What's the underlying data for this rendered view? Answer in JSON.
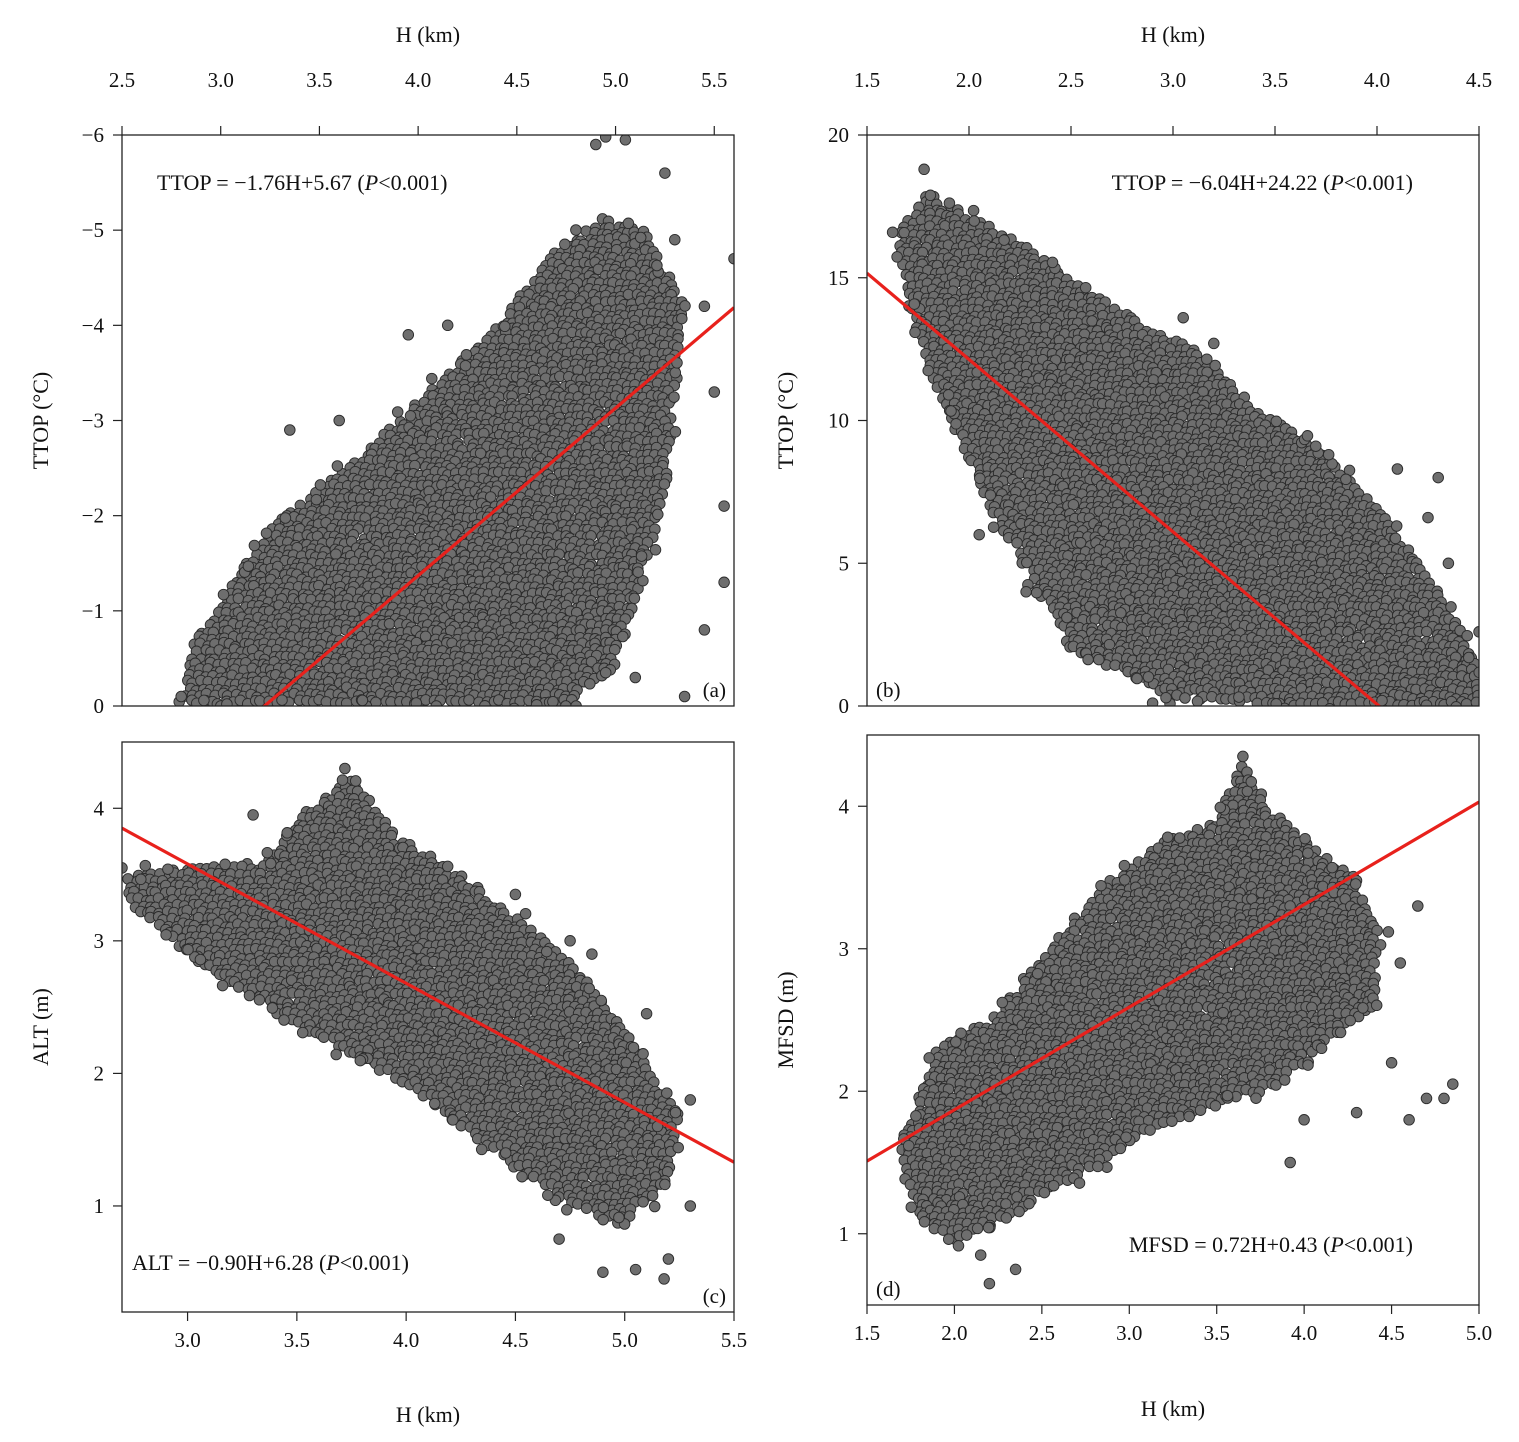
{
  "colors": {
    "point_fill": "#6e6e6e",
    "point_stroke": "#2b2b2b",
    "regression_line": "#e8211c",
    "axis": "#222222"
  },
  "chart_data": [
    {
      "id": "a",
      "type": "scatter",
      "panel_label": "(a)",
      "xlabel": "H (km)",
      "ylabel": "TTOP (°C)",
      "x_axis_position": "top",
      "xlim": [
        2.5,
        5.6
      ],
      "ylim": [
        0,
        -6
      ],
      "y_inverted": true,
      "xticks": [
        2.5,
        3.0,
        3.5,
        4.0,
        4.5,
        5.0,
        5.5
      ],
      "xtick_labels": [
        "2.5",
        "3.0",
        "3.5",
        "4.0",
        "4.5",
        "5.0",
        "5.5"
      ],
      "yticks": [
        0,
        -1,
        -2,
        -3,
        -4,
        -5,
        -6
      ],
      "ytick_labels": [
        "0",
        "−1",
        "−2",
        "−3",
        "−4",
        "−5",
        "−6"
      ],
      "equation": {
        "lhs": "TTOP = −1.76H+5.67 (",
        "p": "P",
        "rhs": "<0.001)"
      },
      "regression": {
        "slope": -1.76,
        "intercept": 5.67
      },
      "equation_position": "top-left",
      "panel_label_position": "bottom-right",
      "point_cloud": {
        "envelope_x": [
          2.85,
          3.25,
          3.7,
          4.05,
          4.4,
          4.7,
          4.95,
          5.15,
          5.35,
          5.25,
          5.0,
          4.75,
          4.4,
          3.9,
          3.3,
          2.8
        ],
        "envelope_y": [
          -0.6,
          -1.9,
          -2.6,
          -3.3,
          -4.0,
          -4.8,
          -5.15,
          -5.0,
          -4.2,
          -2.2,
          -0.4,
          0,
          0,
          0,
          0,
          0
        ],
        "outliers": [
          [
            2.8,
            -0.1
          ],
          [
            3.35,
            -2.9
          ],
          [
            3.6,
            -3.0
          ],
          [
            3.95,
            -3.9
          ],
          [
            4.15,
            -4.0
          ],
          [
            4.9,
            -5.9
          ],
          [
            4.95,
            -5.98
          ],
          [
            5.05,
            -5.95
          ],
          [
            5.25,
            -5.6
          ],
          [
            5.3,
            -4.9
          ],
          [
            5.45,
            -4.2
          ],
          [
            5.5,
            -3.3
          ],
          [
            5.55,
            -2.1
          ],
          [
            5.6,
            -4.7
          ],
          [
            5.45,
            -0.8
          ],
          [
            5.35,
            -0.1
          ],
          [
            4.8,
            0
          ],
          [
            5.1,
            -0.3
          ],
          [
            5.55,
            -1.3
          ],
          [
            4.95,
            -0.35
          ]
        ]
      }
    },
    {
      "id": "b",
      "type": "scatter",
      "panel_label": "(b)",
      "xlabel": "H (km)",
      "ylabel": "TTOP (°C)",
      "x_axis_position": "top",
      "xlim": [
        1.5,
        4.5
      ],
      "ylim": [
        0,
        20
      ],
      "xticks": [
        1.5,
        2.0,
        2.5,
        3.0,
        3.5,
        4.0,
        4.5
      ],
      "xtick_labels": [
        "1.5",
        "2.0",
        "2.5",
        "3.0",
        "3.5",
        "4.0",
        "4.5"
      ],
      "yticks": [
        0,
        5,
        10,
        15,
        20
      ],
      "ytick_labels": [
        "0",
        "5",
        "10",
        "15",
        "20"
      ],
      "equation": {
        "lhs": "TTOP = −6.04H+24.22 (",
        "p": "P",
        "rhs": "<0.001)"
      },
      "regression": {
        "slope": -6.04,
        "intercept": 24.22
      },
      "equation_position": "top-right",
      "panel_label_position": "bottom-left",
      "point_cloud": {
        "envelope_x": [
          1.65,
          1.8,
          2.0,
          2.3,
          2.6,
          2.9,
          3.1,
          3.4,
          3.7,
          4.0,
          4.3,
          4.5,
          4.5,
          4.2,
          3.9,
          3.5,
          3.0,
          2.5,
          2.1,
          1.85,
          1.7
        ],
        "envelope_y": [
          16.5,
          18.0,
          17.2,
          16.0,
          14.5,
          13.2,
          12.5,
          10.5,
          9.0,
          7.0,
          4.0,
          1.5,
          0,
          0,
          0,
          0,
          0.3,
          2.0,
          7.0,
          11.0,
          14.0
        ],
        "outliers": [
          [
            1.78,
            18.8
          ],
          [
            1.9,
            10.9
          ],
          [
            2.05,
            6.0
          ],
          [
            2.28,
            4.0
          ],
          [
            2.48,
            3.1
          ],
          [
            3.05,
            13.6
          ],
          [
            3.2,
            12.7
          ],
          [
            3.7,
            9.1
          ],
          [
            4.1,
            8.3
          ],
          [
            4.3,
            8.0
          ],
          [
            4.25,
            6.6
          ],
          [
            4.45,
            1.7
          ],
          [
            4.5,
            2.6
          ],
          [
            4.35,
            5.0
          ],
          [
            2.9,
            0.1
          ]
        ]
      }
    },
    {
      "id": "c",
      "type": "scatter",
      "panel_label": "(c)",
      "xlabel": "H (km)",
      "ylabel": "ALT (m)",
      "x_axis_position": "bottom",
      "xlim": [
        2.7,
        5.5
      ],
      "ylim": [
        0.2,
        4.5
      ],
      "xticks": [
        3.0,
        3.5,
        4.0,
        4.5,
        5.0,
        5.5
      ],
      "xtick_labels": [
        "3.0",
        "3.5",
        "4.0",
        "4.5",
        "5.0",
        "5.5"
      ],
      "yticks": [
        1,
        2,
        3,
        4
      ],
      "ytick_labels": [
        "1",
        "2",
        "3",
        "4"
      ],
      "equation": {
        "lhs": "ALT = −0.90H+6.28 (",
        "p": "P",
        "rhs": "<0.001)"
      },
      "regression": {
        "slope": -0.9,
        "intercept": 6.28
      },
      "equation_position": "bottom-left",
      "panel_label_position": "bottom-right",
      "point_cloud": {
        "envelope_x": [
          2.72,
          3.0,
          3.35,
          3.55,
          3.75,
          3.95,
          4.2,
          4.5,
          4.8,
          5.05,
          5.25,
          5.2,
          5.0,
          4.7,
          4.4,
          4.1,
          3.8,
          3.4,
          3.0,
          2.72
        ],
        "envelope_y": [
          3.5,
          3.55,
          3.6,
          4.0,
          4.25,
          3.8,
          3.55,
          3.2,
          2.75,
          2.2,
          1.7,
          1.2,
          0.85,
          1.05,
          1.4,
          1.8,
          2.1,
          2.45,
          2.9,
          3.3
        ],
        "outliers": [
          [
            2.7,
            3.55
          ],
          [
            3.3,
            3.95
          ],
          [
            3.72,
            4.3
          ],
          [
            4.5,
            3.35
          ],
          [
            4.75,
            3.0
          ],
          [
            4.85,
            2.9
          ],
          [
            5.1,
            2.45
          ],
          [
            5.3,
            1.0
          ],
          [
            5.2,
            0.6
          ],
          [
            4.9,
            0.5
          ],
          [
            5.05,
            0.52
          ],
          [
            5.18,
            0.45
          ],
          [
            4.7,
            0.75
          ],
          [
            5.15,
            1.6
          ],
          [
            5.3,
            1.8
          ]
        ]
      }
    },
    {
      "id": "d",
      "type": "scatter",
      "panel_label": "(d)",
      "xlabel": "H (km)",
      "ylabel": "MFSD (m)",
      "x_axis_position": "bottom",
      "xlim": [
        1.5,
        5.0
      ],
      "ylim": [
        0.5,
        4.5
      ],
      "xticks": [
        1.5,
        2.0,
        2.5,
        3.0,
        3.5,
        4.0,
        4.5,
        5.0
      ],
      "xtick_labels": [
        "1.5",
        "2.0",
        "2.5",
        "3.0",
        "3.5",
        "4.0",
        "4.5",
        "5.0"
      ],
      "yticks": [
        1,
        2,
        3,
        4
      ],
      "ytick_labels": [
        "1",
        "2",
        "3",
        "4"
      ],
      "equation": {
        "lhs": "MFSD = 0.72H+0.43 (",
        "p": "P",
        "rhs": "<0.001)"
      },
      "regression": {
        "slope": 0.72,
        "intercept": 0.43
      },
      "equation_position": "bottom-right",
      "panel_label_position": "bottom-left",
      "point_cloud": {
        "envelope_x": [
          1.7,
          1.9,
          2.2,
          2.6,
          2.9,
          3.2,
          3.5,
          3.65,
          3.8,
          4.05,
          4.3,
          4.45,
          4.4,
          4.1,
          3.8,
          3.5,
          3.1,
          2.7,
          2.3,
          2.0,
          1.8,
          1.7
        ],
        "envelope_y": [
          1.7,
          2.3,
          2.5,
          3.1,
          3.5,
          3.75,
          3.9,
          4.3,
          4.0,
          3.7,
          3.5,
          3.1,
          2.6,
          2.3,
          2.0,
          1.9,
          1.7,
          1.4,
          1.1,
          0.95,
          1.1,
          1.4
        ],
        "outliers": [
          [
            2.2,
            0.65
          ],
          [
            2.35,
            0.75
          ],
          [
            2.15,
            0.85
          ],
          [
            3.92,
            1.5
          ],
          [
            4.6,
            1.8
          ],
          [
            4.7,
            1.95
          ],
          [
            4.8,
            1.95
          ],
          [
            4.85,
            2.05
          ],
          [
            4.65,
            3.3
          ],
          [
            4.5,
            2.2
          ],
          [
            4.0,
            1.8
          ],
          [
            3.65,
            4.35
          ],
          [
            4.3,
            1.85
          ],
          [
            4.55,
            2.9
          ]
        ]
      }
    }
  ]
}
